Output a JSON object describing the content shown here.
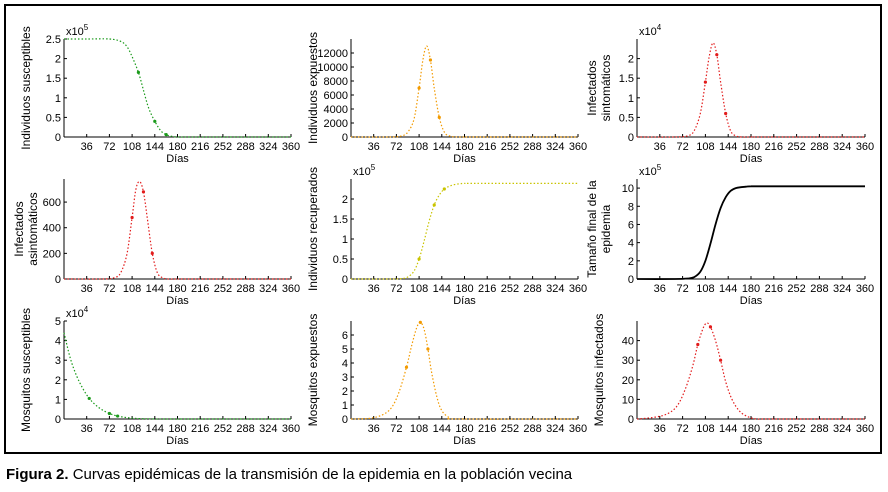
{
  "caption": {
    "label": "Figura 2.",
    "text": "Curvas epidémicas de la transmisión de la epidemia en la población vecina"
  },
  "chart_data": [
    {
      "type": "line",
      "color": "#1a9a1a",
      "ylabel": "Individuos susceptibles",
      "xlabel": "Días",
      "multiplier": "x10",
      "exponent": "5",
      "ylim": [
        0,
        2.5
      ],
      "yticks": [
        "0",
        "0.5",
        "1",
        "1.5",
        "2",
        "2.5"
      ],
      "xlim": [
        0,
        360
      ],
      "xticks": [
        36,
        72,
        108,
        144,
        180,
        216,
        252,
        288,
        324,
        360
      ],
      "x": [
        0,
        36,
        72,
        90,
        100,
        108,
        118,
        126,
        134,
        144,
        154,
        162,
        170,
        180,
        200,
        240,
        300,
        360
      ],
      "y": [
        2.5,
        2.5,
        2.5,
        2.44,
        2.3,
        2.05,
        1.65,
        1.2,
        0.75,
        0.4,
        0.15,
        0.06,
        0.02,
        0.0,
        0,
        0,
        0,
        0
      ]
    },
    {
      "type": "line",
      "color": "#f29a00",
      "ylabel": "Individuos expuestos",
      "xlabel": "Días",
      "ylim": [
        0,
        14000
      ],
      "yticks": [
        "0",
        "2000",
        "4000",
        "6000",
        "8000",
        "10000",
        "12000"
      ],
      "xlim": [
        0,
        360
      ],
      "xticks": [
        36,
        72,
        108,
        144,
        180,
        216,
        252,
        288,
        324,
        360
      ],
      "x": [
        0,
        60,
        80,
        90,
        100,
        108,
        114,
        120,
        126,
        132,
        140,
        148,
        156,
        165,
        180,
        200,
        360
      ],
      "y": [
        0,
        0,
        150,
        700,
        2600,
        7000,
        11000,
        13000,
        11000,
        7000,
        2800,
        700,
        150,
        20,
        0,
        0,
        0
      ]
    },
    {
      "type": "line",
      "color": "#e21b1b",
      "ylabel": "Infectados sintomáticos",
      "xlabel": "Días",
      "multiplier": "x10",
      "exponent": "4",
      "ylim": [
        0,
        2.5
      ],
      "yticks": [
        "0",
        "0.5",
        "1",
        "1.5",
        "2"
      ],
      "xlim": [
        0,
        360
      ],
      "xticks": [
        36,
        72,
        108,
        144,
        180,
        216,
        252,
        288,
        324,
        360
      ],
      "x": [
        0,
        60,
        80,
        90,
        100,
        108,
        114,
        120,
        126,
        132,
        140,
        148,
        156,
        165,
        180,
        200,
        360
      ],
      "y": [
        0,
        0,
        0.03,
        0.15,
        0.6,
        1.4,
        2.05,
        2.4,
        2.1,
        1.4,
        0.6,
        0.15,
        0.03,
        0,
        0,
        0,
        0
      ]
    },
    {
      "type": "line",
      "color": "#e21b1b",
      "ylabel": "Infectados asintomáticos",
      "xlabel": "Días",
      "ylim": [
        0,
        780
      ],
      "yticks": [
        "0",
        "200",
        "400",
        "600"
      ],
      "xlim": [
        0,
        360
      ],
      "xticks": [
        36,
        72,
        108,
        144,
        180,
        216,
        252,
        288,
        324,
        360
      ],
      "x": [
        0,
        60,
        80,
        90,
        100,
        108,
        114,
        120,
        126,
        132,
        140,
        148,
        156,
        165,
        180,
        200,
        360
      ],
      "y": [
        0,
        0,
        10,
        50,
        200,
        480,
        700,
        760,
        680,
        480,
        200,
        50,
        10,
        0,
        0,
        0,
        0
      ]
    },
    {
      "type": "line",
      "color": "#c9c400",
      "ylabel": "Individuos recuperados",
      "xlabel": "Días",
      "multiplier": "x10",
      "exponent": "5",
      "ylim": [
        0,
        2.5
      ],
      "yticks": [
        "0",
        "0.5",
        "1",
        "1.5",
        "2"
      ],
      "xlim": [
        0,
        360
      ],
      "xticks": [
        36,
        72,
        108,
        144,
        180,
        216,
        252,
        288,
        324,
        360
      ],
      "x": [
        0,
        60,
        80,
        90,
        100,
        108,
        116,
        124,
        132,
        140,
        148,
        156,
        164,
        172,
        180,
        200,
        360
      ],
      "y": [
        0,
        0,
        0.01,
        0.05,
        0.2,
        0.5,
        0.95,
        1.45,
        1.85,
        2.1,
        2.25,
        2.32,
        2.36,
        2.38,
        2.39,
        2.39,
        2.39
      ]
    },
    {
      "type": "line",
      "color": "#000000",
      "solid": true,
      "ylabel": "Tamaño final de la epidemia",
      "xlabel": "Días",
      "multiplier": "x10",
      "exponent": "5",
      "ylim": [
        0,
        11
      ],
      "yticks": [
        "0",
        "2",
        "4",
        "6",
        "8",
        "10"
      ],
      "xlim": [
        0,
        360
      ],
      "xticks": [
        36,
        72,
        108,
        144,
        180,
        216,
        252,
        288,
        324,
        360
      ],
      "x": [
        0,
        60,
        80,
        90,
        100,
        108,
        116,
        124,
        132,
        140,
        148,
        156,
        164,
        172,
        180,
        200,
        360
      ],
      "y": [
        0,
        0,
        0.05,
        0.2,
        0.8,
        2.0,
        3.9,
        6.0,
        7.8,
        9.0,
        9.7,
        10.0,
        10.1,
        10.15,
        10.2,
        10.2,
        10.2
      ]
    },
    {
      "type": "line",
      "color": "#1a9a1a",
      "ylabel": "Mosquitos susceptibles",
      "xlabel": "Días",
      "multiplier": "x10",
      "exponent": "4",
      "ylim": [
        0,
        5
      ],
      "yticks": [
        "0",
        "1",
        "2",
        "3",
        "4",
        "5"
      ],
      "xlim": [
        0,
        360
      ],
      "xticks": [
        36,
        72,
        108,
        144,
        180,
        216,
        252,
        288,
        324,
        360
      ],
      "x": [
        0,
        10,
        20,
        30,
        40,
        50,
        60,
        72,
        85,
        100,
        120,
        144,
        180,
        360
      ],
      "y": [
        4.4,
        3.1,
        2.2,
        1.55,
        1.05,
        0.72,
        0.48,
        0.28,
        0.15,
        0.07,
        0.02,
        0.0,
        0,
        0
      ]
    },
    {
      "type": "line",
      "color": "#f29a00",
      "ylabel": "Mosquitos expuestos",
      "xlabel": "Días",
      "ylim": [
        0,
        7
      ],
      "yticks": [
        "0",
        "1",
        "2",
        "3",
        "4",
        "5",
        "6"
      ],
      "xlim": [
        0,
        360
      ],
      "xticks": [
        36,
        72,
        108,
        144,
        180,
        216,
        252,
        288,
        324,
        360
      ],
      "x": [
        0,
        30,
        50,
        64,
        76,
        88,
        96,
        104,
        110,
        116,
        122,
        128,
        136,
        144,
        156,
        170,
        360
      ],
      "y": [
        0,
        0.05,
        0.3,
        0.8,
        1.9,
        3.7,
        5.2,
        6.5,
        6.9,
        6.4,
        5.0,
        3.3,
        1.6,
        0.6,
        0.1,
        0,
        0
      ]
    },
    {
      "type": "line",
      "color": "#e21b1b",
      "ylabel": "Mosquitos infectados",
      "xlabel": "Días",
      "ylim": [
        0,
        50
      ],
      "yticks": [
        "0",
        "10",
        "20",
        "30",
        "40"
      ],
      "xlim": [
        0,
        360
      ],
      "xticks": [
        36,
        72,
        108,
        144,
        180,
        216,
        252,
        288,
        324,
        360
      ],
      "x": [
        0,
        30,
        50,
        64,
        76,
        88,
        96,
        104,
        110,
        116,
        124,
        132,
        140,
        150,
        162,
        176,
        190,
        210,
        360
      ],
      "y": [
        0,
        1,
        3,
        7,
        15,
        27,
        38,
        46,
        49,
        47,
        40,
        30,
        19,
        10,
        4,
        1,
        0,
        0,
        0
      ]
    }
  ]
}
